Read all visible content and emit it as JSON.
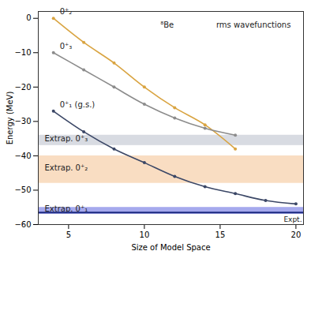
{
  "chart_data": {
    "type": "line",
    "x_label": "Size of Model Space",
    "y_label": "Energy (MeV)",
    "xlim": [
      3,
      20.5
    ],
    "ylim": [
      -60,
      2
    ],
    "xticks": [
      5,
      10,
      15,
      20
    ],
    "yticks": [
      0,
      -10,
      -20,
      -30,
      -40,
      -50,
      -60
    ],
    "marker": "circle",
    "series": [
      {
        "name": "0⁺₁ (g.s.)",
        "color": "#3b4766",
        "x": [
          4,
          6,
          8,
          10,
          12,
          14,
          16,
          18,
          20
        ],
        "values": [
          -27,
          -33,
          -38,
          -42,
          -46,
          -49,
          -51,
          -53,
          -54
        ]
      },
      {
        "name": "0⁺₂",
        "color": "#d9a441",
        "x": [
          4,
          6,
          8,
          10,
          12,
          14,
          16
        ],
        "values": [
          0,
          -7,
          -13,
          -20,
          -26,
          -31,
          -38
        ]
      },
      {
        "name": "0⁺₃",
        "color": "#8c8c8c",
        "x": [
          4,
          6,
          8,
          10,
          12,
          14,
          16
        ],
        "values": [
          -10,
          -15,
          -20,
          -25,
          -29,
          -32,
          -34
        ]
      }
    ],
    "bands": [
      {
        "name": "Extrap. 0⁺₃",
        "lo": -37,
        "hi": -34,
        "color": "#c8ccd6"
      },
      {
        "name": "Extrap. 0⁺₂",
        "lo": -48,
        "hi": -40,
        "color": "#f7cfa8"
      },
      {
        "name": "Extrap. 0⁺₁",
        "lo": -57,
        "hi": -55,
        "color": "#7f84e6"
      }
    ],
    "reference_lines": [
      {
        "name": "Expt.",
        "value": -56.5,
        "color": "#1c2a80"
      }
    ],
    "annotations": [
      {
        "text": "⁸Be",
        "x": 11.5,
        "y": -2
      },
      {
        "text": "rms wavefunctions",
        "x": 17.2,
        "y": -2
      }
    ]
  }
}
